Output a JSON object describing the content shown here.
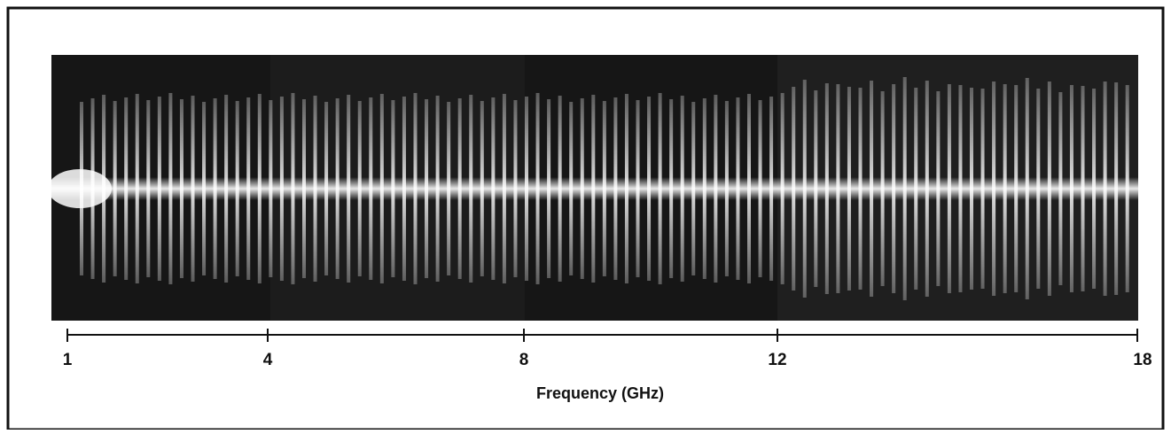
{
  "axis": {
    "label": "Frequency (GHz)",
    "ticks": [
      "1",
      "4",
      "8",
      "12",
      "18"
    ]
  }
}
